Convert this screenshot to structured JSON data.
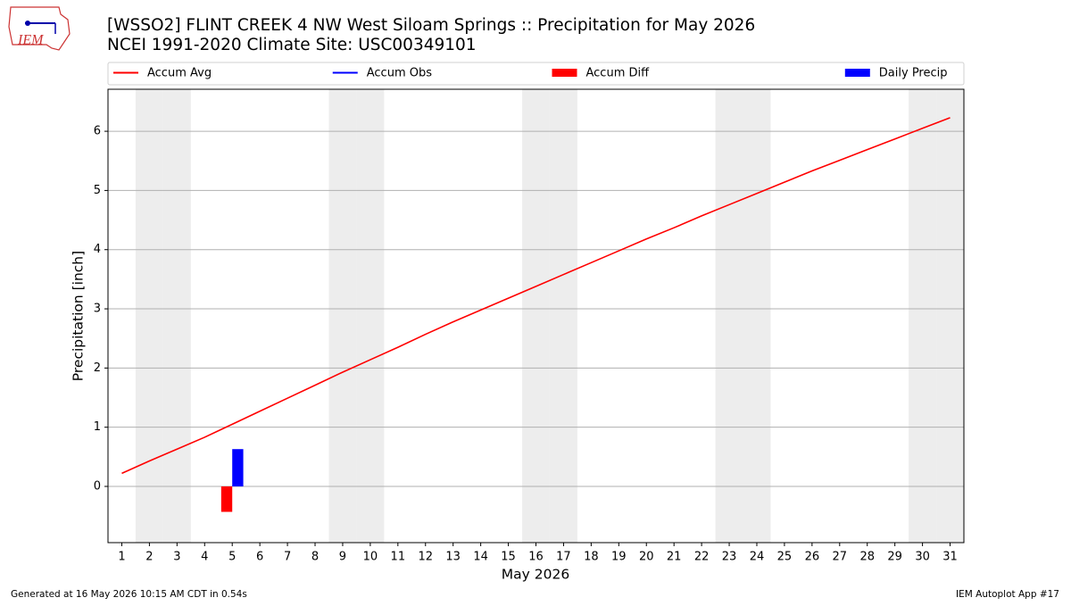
{
  "chart_data": {
    "type": "line",
    "title": "[WSSO2] FLINT CREEK 4 NW West Siloam Springs :: Precipitation for May 2026",
    "subtitle": "NCEI 1991-2020 Climate Site: USC00349101",
    "logo": "IEM",
    "x_label": "May 2026",
    "y_label": "Precipitation [inch]",
    "footer_left": "Generated at 16 May 2026 10:15 AM CDT in 0.54s",
    "footer_right": "IEM Autoplot App #17",
    "x": [
      1,
      2,
      3,
      4,
      5,
      6,
      7,
      8,
      9,
      10,
      11,
      12,
      13,
      14,
      15,
      16,
      17,
      18,
      19,
      20,
      21,
      22,
      23,
      24,
      25,
      26,
      27,
      28,
      29,
      30,
      31
    ],
    "xlim": [
      0.5,
      31.5
    ],
    "xticks": [
      1,
      2,
      3,
      4,
      5,
      6,
      7,
      8,
      9,
      10,
      11,
      12,
      13,
      14,
      15,
      16,
      17,
      18,
      19,
      20,
      21,
      22,
      23,
      24,
      25,
      26,
      27,
      28,
      29,
      30,
      31
    ],
    "ylim": [
      -0.95,
      6.71
    ],
    "yticks": [
      0,
      1,
      2,
      3,
      4,
      5,
      6
    ],
    "grid": true,
    "shaded_days": [
      2,
      3,
      9,
      10,
      16,
      17,
      23,
      24,
      30,
      31
    ],
    "shade_color": "#ededed",
    "legend": "top",
    "series": [
      {
        "name": "Accum Avg",
        "kind": "line",
        "color": "#ff0000",
        "values": [
          0.22,
          0.43,
          0.63,
          0.83,
          1.05,
          1.27,
          1.49,
          1.71,
          1.93,
          2.14,
          2.35,
          2.57,
          2.78,
          2.98,
          3.18,
          3.38,
          3.58,
          3.78,
          3.98,
          4.18,
          4.37,
          4.57,
          4.76,
          4.95,
          5.14,
          5.33,
          5.51,
          5.69,
          5.87,
          6.05,
          6.23
        ]
      },
      {
        "name": "Accum Obs",
        "kind": "line",
        "color": "#0000ff",
        "values": [
          null,
          null,
          null,
          null,
          null,
          null,
          null,
          null,
          null,
          null,
          null,
          null,
          null,
          null,
          null,
          null,
          null,
          null,
          null,
          null,
          null,
          null,
          null,
          null,
          null,
          null,
          null,
          null,
          null,
          null,
          null
        ]
      },
      {
        "name": "Accum Diff",
        "kind": "bar",
        "color": "#ff0000",
        "values": [
          null,
          null,
          null,
          null,
          -0.43,
          null,
          null,
          null,
          null,
          null,
          null,
          null,
          null,
          null,
          null,
          null,
          null,
          null,
          null,
          null,
          null,
          null,
          null,
          null,
          null,
          null,
          null,
          null,
          null,
          null,
          null
        ]
      },
      {
        "name": "Daily Precip",
        "kind": "bar",
        "color": "#0000ff",
        "values": [
          null,
          null,
          null,
          null,
          0.63,
          null,
          null,
          null,
          null,
          null,
          null,
          null,
          null,
          null,
          null,
          null,
          null,
          null,
          null,
          null,
          null,
          null,
          null,
          null,
          null,
          null,
          null,
          null,
          null,
          null,
          null
        ]
      }
    ]
  }
}
